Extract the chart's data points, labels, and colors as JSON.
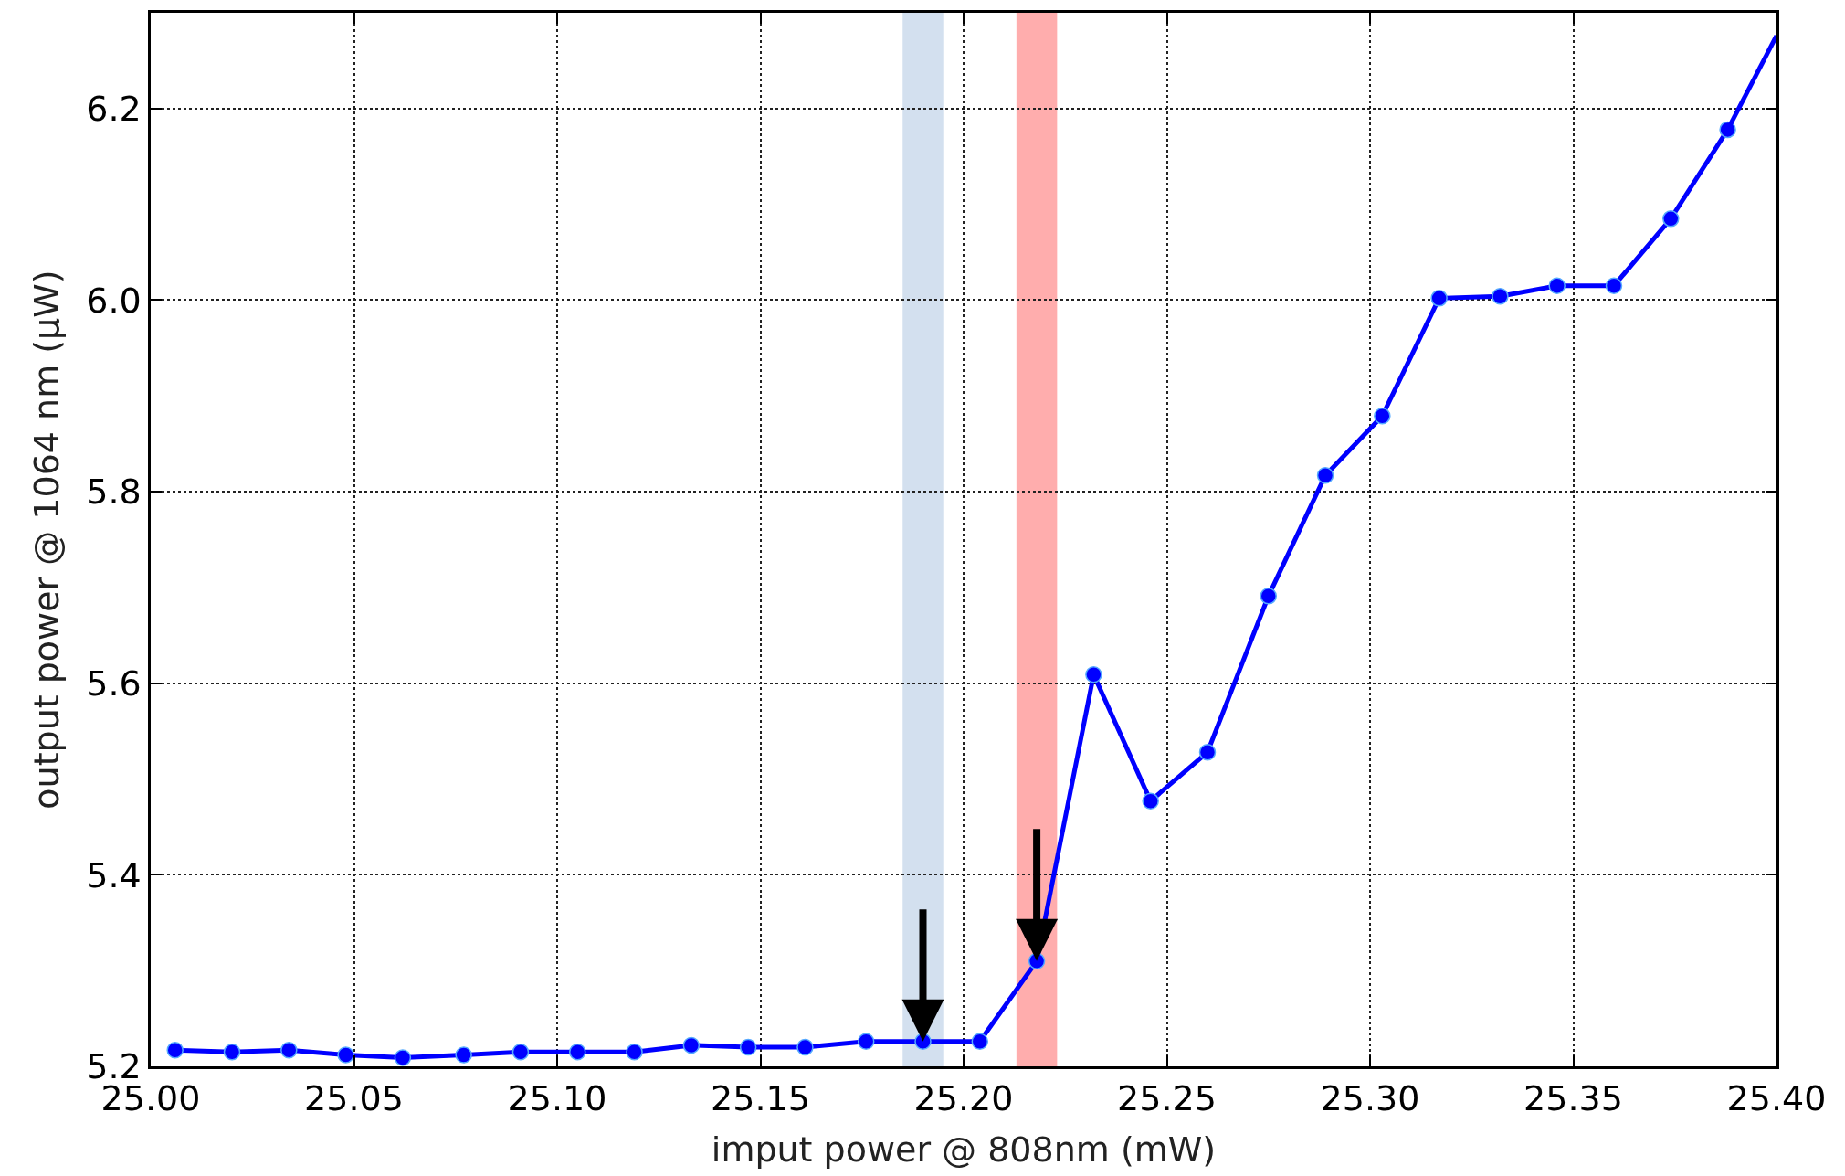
{
  "chart_data": {
    "type": "line",
    "xlabel": "imput power @ 808nm (mW)",
    "ylabel": "output power @ 1064 nm (μW)",
    "x": [
      25.006,
      25.02,
      25.034,
      25.048,
      25.062,
      25.077,
      25.091,
      25.105,
      25.119,
      25.133,
      25.147,
      25.161,
      25.176,
      25.19,
      25.204,
      25.218,
      25.232,
      25.246,
      25.26,
      25.275,
      25.289,
      25.303,
      25.317,
      25.332,
      25.346,
      25.36,
      25.374,
      25.388
    ],
    "series": [
      {
        "color": "#0000ff",
        "values": [
          5.217,
          5.215,
          5.217,
          5.212,
          5.209,
          5.212,
          5.215,
          5.215,
          5.215,
          5.222,
          5.22,
          5.22,
          5.226,
          5.226,
          5.226,
          5.31,
          5.609,
          5.477,
          5.528,
          5.691,
          5.817,
          5.879,
          6.002,
          6.004,
          6.015,
          6.015,
          6.085,
          6.178
        ]
      },
      {
        "type": "line",
        "color": "#0000ff",
        "marker": "none",
        "x": [
          25.388,
          25.4
        ],
        "values": [
          6.178,
          6.276
        ]
      }
    ],
    "xlim": [
      25.0,
      25.4
    ],
    "ylim": [
      5.2,
      6.3
    ],
    "xticks": [
      {
        "value": 25.0,
        "label": "25.00"
      },
      {
        "value": 25.05,
        "label": "25.05"
      },
      {
        "value": 25.1,
        "label": "25.10"
      },
      {
        "value": 25.15,
        "label": "25.15"
      },
      {
        "value": 25.2,
        "label": "25.20"
      },
      {
        "value": 25.25,
        "label": "25.25"
      },
      {
        "value": 25.3,
        "label": "25.30"
      },
      {
        "value": 25.35,
        "label": "25.35"
      },
      {
        "value": 25.4,
        "label": "25.40"
      }
    ],
    "yticks": [
      5.2,
      5.4,
      5.6,
      5.8,
      {
        "value": 6.0,
        "label": "6.0"
      },
      6.2
    ],
    "bands": [
      {
        "axis": "x",
        "from": 25.185,
        "to": 25.195,
        "color": "#d3e0ef"
      },
      {
        "axis": "x",
        "from": 25.213,
        "to": 25.223,
        "color": "#ffadad"
      }
    ],
    "grid": true,
    "marker": "circle",
    "line_style": "solid"
  }
}
